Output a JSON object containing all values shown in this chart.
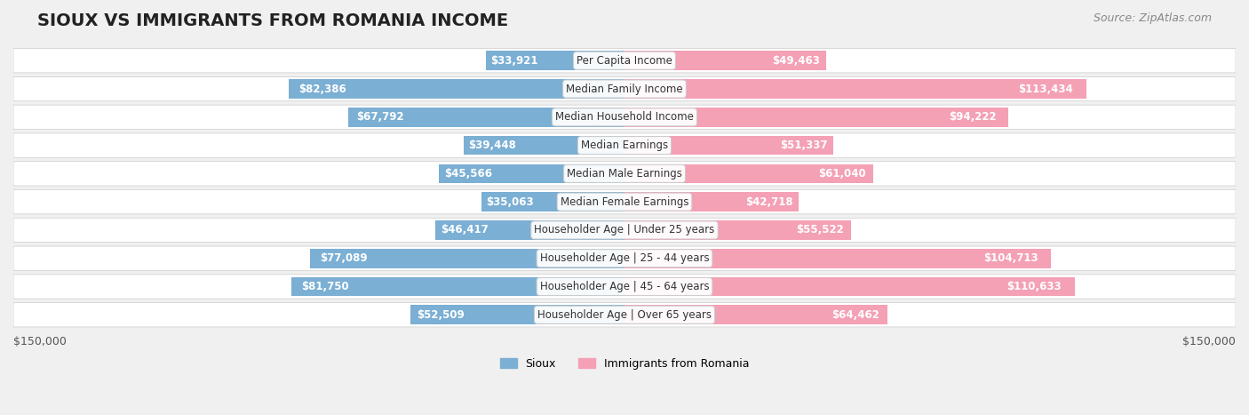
{
  "title": "SIOUX VS IMMIGRANTS FROM ROMANIA INCOME",
  "source": "Source: ZipAtlas.com",
  "categories": [
    "Per Capita Income",
    "Median Family Income",
    "Median Household Income",
    "Median Earnings",
    "Median Male Earnings",
    "Median Female Earnings",
    "Householder Age | Under 25 years",
    "Householder Age | 25 - 44 years",
    "Householder Age | 45 - 64 years",
    "Householder Age | Over 65 years"
  ],
  "sioux_values": [
    33921,
    82386,
    67792,
    39448,
    45566,
    35063,
    46417,
    77089,
    81750,
    52509
  ],
  "romania_values": [
    49463,
    113434,
    94222,
    51337,
    61040,
    42718,
    55522,
    104713,
    110633,
    64462
  ],
  "sioux_color": "#7bafd4",
  "sioux_color_dark": "#5b8db8",
  "romania_color": "#f4a0b5",
  "romania_color_dark": "#e8728f",
  "max_value": 150000,
  "background_color": "#f0f0f0",
  "row_bg_color": "#ffffff",
  "label_sioux": "Sioux",
  "label_romania": "Immigrants from Romania",
  "x_tick_label_left": "$150,000",
  "x_tick_label_right": "$150,000"
}
